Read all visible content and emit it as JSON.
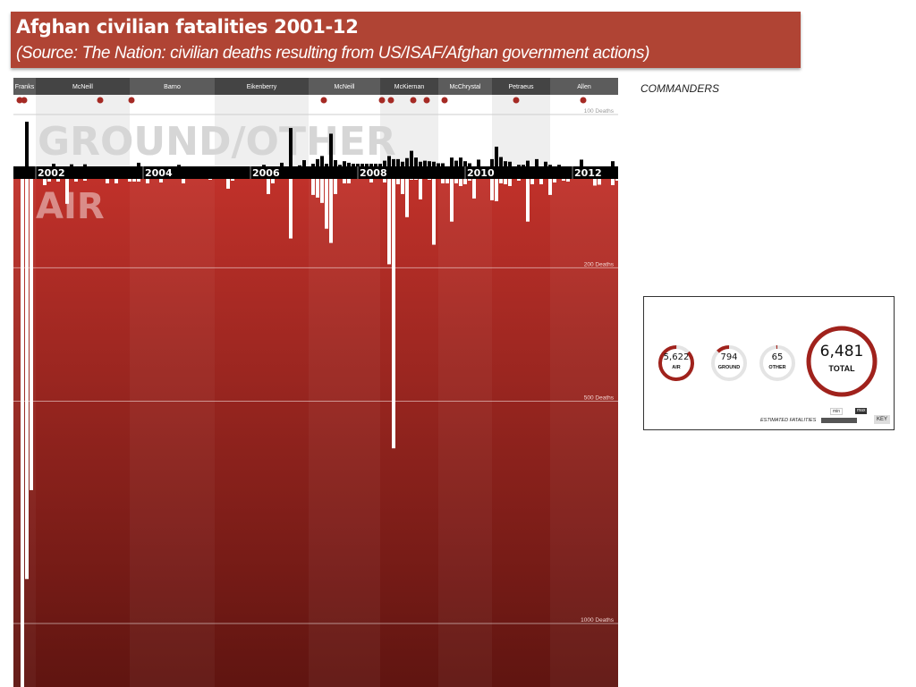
{
  "slide": {
    "title": "Afghan civilian fatalities 2001-12",
    "subtitle": "(Source: The Nation: civilian deaths resulting from US/ISAF/Afghan government actions)",
    "side_label": "COMMANDERS"
  },
  "chart_data": {
    "type": "bar",
    "x_unit": "month",
    "first_month": "2001-10",
    "month_count": 135,
    "year_ticks": [
      "2002",
      "2004",
      "2006",
      "2008",
      "2010",
      "2012"
    ],
    "section_labels": {
      "ground": "GROUND/OTHER",
      "air": "AIR"
    },
    "gridlines": [
      {
        "side": "ground",
        "value": 100,
        "label": "100 Deaths"
      },
      {
        "side": "air",
        "value": 200,
        "label": "200 Deaths"
      },
      {
        "side": "air",
        "value": 500,
        "label": "500 Deaths"
      },
      {
        "side": "air",
        "value": 1000,
        "label": "1000 Deaths"
      }
    ],
    "series": [
      {
        "name": "GROUND/OTHER",
        "direction": "up",
        "color": "#000000",
        "values": {
          "1": 86,
          "7": 5,
          "11": 4,
          "14": 4,
          "26": 7,
          "35": 3,
          "54": 3,
          "58": 7,
          "60": 74,
          "62": 2,
          "63": 12,
          "65": 5,
          "66": 14,
          "67": 20,
          "68": 5,
          "69": 63,
          "70": 12,
          "71": 3,
          "72": 10,
          "73": 7,
          "74": 5,
          "75": 5,
          "76": 5,
          "77": 5,
          "78": 5,
          "79": 5,
          "80": 5,
          "81": 11,
          "82": 20,
          "83": 14,
          "84": 14,
          "85": 9,
          "86": 16,
          "87": 30,
          "88": 17,
          "89": 9,
          "90": 11,
          "91": 10,
          "92": 9,
          "93": 6,
          "94": 6,
          "96": 17,
          "97": 11,
          "98": 17,
          "99": 10,
          "100": 6,
          "102": 13,
          "105": 14,
          "106": 38,
          "107": 18,
          "108": 10,
          "109": 9,
          "111": 3,
          "112": 3,
          "113": 11,
          "115": 14,
          "117": 9,
          "118": 3,
          "120": 3,
          "125": 13,
          "132": 10
        }
      },
      {
        "name": "AIR",
        "direction": "down",
        "color": "#ffffff",
        "values": {
          "0": 1150,
          "1": 900,
          "2": 700,
          "5": 14,
          "6": 6,
          "8": 6,
          "10": 56,
          "12": 6,
          "14": 4,
          "19": 10,
          "21": 10,
          "24": 6,
          "25": 6,
          "26": 6,
          "28": 10,
          "31": 8,
          "36": 10,
          "42": 2,
          "46": 22,
          "47": 4,
          "55": 34,
          "56": 10,
          "60": 134,
          "65": 36,
          "66": 42,
          "67": 54,
          "68": 112,
          "69": 144,
          "70": 34,
          "72": 10,
          "73": 10,
          "78": 8,
          "81": 8,
          "82": 192,
          "83": 606,
          "84": 12,
          "85": 34,
          "86": 86,
          "87": 2,
          "88": 2,
          "89": 46,
          "91": 2,
          "92": 148,
          "94": 10,
          "95": 10,
          "96": 96,
          "97": 10,
          "98": 16,
          "99": 12,
          "100": 4,
          "101": 44,
          "105": 48,
          "106": 50,
          "107": 10,
          "108": 12,
          "109": 16,
          "111": 4,
          "113": 96,
          "114": 12,
          "116": 12,
          "118": 36,
          "119": 8,
          "121": 4,
          "122": 6,
          "128": 15,
          "129": 13,
          "132": 14,
          "133": 4
        }
      }
    ],
    "commanders": [
      {
        "name": "Franks",
        "start": "2001-10"
      },
      {
        "name": "McNeill",
        "start": "2002-01"
      },
      {
        "name": "Barno",
        "start": "2003-10"
      },
      {
        "name": "Eikenberry",
        "start": "2005-05"
      },
      {
        "name": "McNeill",
        "start": "2007-02"
      },
      {
        "name": "McKiernan",
        "start": "2008-06"
      },
      {
        "name": "McChrystal",
        "start": "2009-07"
      },
      {
        "name": "Petraeus",
        "start": "2010-07"
      },
      {
        "name": "Allen",
        "start": "2011-08"
      }
    ],
    "event_markers": [
      "2001-10",
      "2001-11",
      "2003-04",
      "2003-11",
      "2007-06",
      "2008-07",
      "2008-09",
      "2009-02",
      "2009-05",
      "2009-09",
      "2011-01",
      "2012-04"
    ],
    "colors": {
      "air_bg_top": "#c0312a",
      "air_bg_bottom": "#5a130f",
      "marker": "#a52a24",
      "header_dark": "#444444",
      "header_light": "#5c5c5c"
    }
  },
  "summary": {
    "donuts": [
      {
        "value": "5,622",
        "label": "AIR",
        "fraction": 0.867
      },
      {
        "value": "794",
        "label": "GROUND",
        "fraction": 0.1225
      },
      {
        "value": "65",
        "label": "OTHER",
        "fraction": 0.01
      },
      {
        "value": "6,481",
        "label": "TOTAL",
        "fraction": 1
      }
    ],
    "slider_label": "ESTIMATED FATALITIES",
    "slider_min": "min",
    "slider_max": "max",
    "slider_level": 1,
    "key_label": "KEY",
    "accent": "#a0221c"
  }
}
